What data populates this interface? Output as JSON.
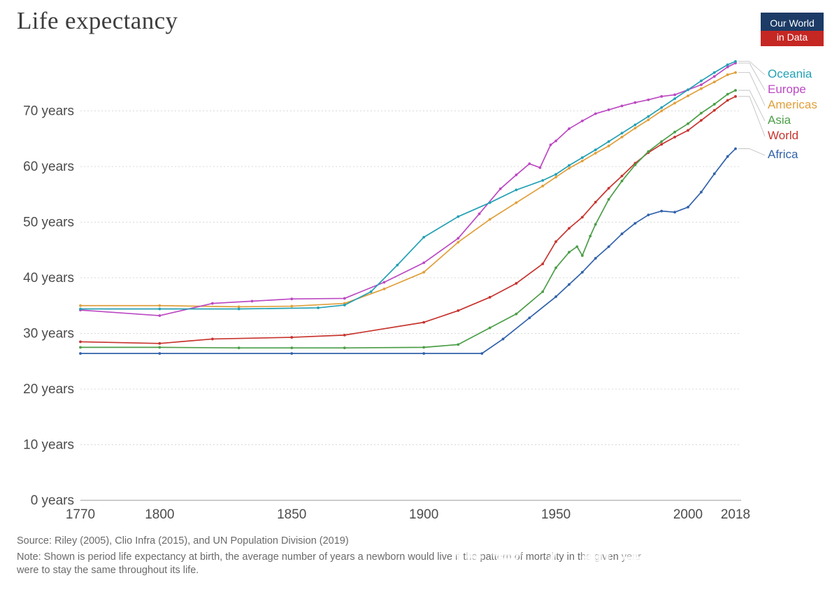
{
  "header": {
    "title": "Life expectancy",
    "logo_line1": "Our World",
    "logo_line2": "in Data"
  },
  "footer": {
    "source": "Source: Riley (2005), Clio Infra (2015), and UN Population Division (2019)",
    "note_line1": "Note: Shown is period life expectancy at birth, the average number of years a newborn would live if the pattern of mortality in the given year",
    "note_line2": "were to stay the same throughout its life.",
    "watermark": "传号 7 新亲玩美食"
  },
  "chart_data": {
    "type": "line",
    "title": "Life expectancy",
    "x_range": [
      1770,
      2018
    ],
    "y_range": [
      0,
      79
    ],
    "grid": true,
    "legend_position": "right",
    "x_ticks": [
      {
        "value": 1770,
        "label": "1770"
      },
      {
        "value": 1800,
        "label": "1800"
      },
      {
        "value": 1850,
        "label": "1850"
      },
      {
        "value": 1900,
        "label": "1900"
      },
      {
        "value": 1950,
        "label": "1950"
      },
      {
        "value": 2000,
        "label": "2000"
      },
      {
        "value": 2018,
        "label": "2018"
      }
    ],
    "y_ticks": [
      {
        "value": 0,
        "label": "0 years"
      },
      {
        "value": 10,
        "label": "10 years"
      },
      {
        "value": 20,
        "label": "20 years"
      },
      {
        "value": 30,
        "label": "30 years"
      },
      {
        "value": 40,
        "label": "40 years"
      },
      {
        "value": 50,
        "label": "50 years"
      },
      {
        "value": 60,
        "label": "60 years"
      },
      {
        "value": 70,
        "label": "70 years"
      }
    ],
    "series": [
      {
        "name": "Oceania",
        "color": "#23a0b4",
        "points": [
          [
            1770,
            34.4
          ],
          [
            1800,
            34.4
          ],
          [
            1830,
            34.4
          ],
          [
            1860,
            34.6
          ],
          [
            1870,
            35.1
          ],
          [
            1880,
            37.5
          ],
          [
            1890,
            42.3
          ],
          [
            1900,
            47.3
          ],
          [
            1913,
            51.0
          ],
          [
            1925,
            53.5
          ],
          [
            1935,
            55.8
          ],
          [
            1945,
            57.5
          ],
          [
            1950,
            58.6
          ],
          [
            1955,
            60.2
          ],
          [
            1960,
            61.6
          ],
          [
            1965,
            63.0
          ],
          [
            1970,
            64.5
          ],
          [
            1975,
            66.0
          ],
          [
            1980,
            67.5
          ],
          [
            1985,
            69.0
          ],
          [
            1990,
            70.6
          ],
          [
            1995,
            72.2
          ],
          [
            2000,
            73.8
          ],
          [
            2005,
            75.4
          ],
          [
            2010,
            76.9
          ],
          [
            2015,
            78.3
          ],
          [
            2018,
            78.9
          ]
        ]
      },
      {
        "name": "Europe",
        "color": "#bc49c3",
        "points": [
          [
            1770,
            34.2
          ],
          [
            1800,
            33.2
          ],
          [
            1820,
            35.4
          ],
          [
            1835,
            35.8
          ],
          [
            1850,
            36.2
          ],
          [
            1870,
            36.3
          ],
          [
            1885,
            39.2
          ],
          [
            1900,
            42.7
          ],
          [
            1913,
            47.1
          ],
          [
            1921,
            51.5
          ],
          [
            1929,
            56.0
          ],
          [
            1935,
            58.5
          ],
          [
            1940,
            60.5
          ],
          [
            1944,
            59.8
          ],
          [
            1948,
            63.9
          ],
          [
            1950,
            64.6
          ],
          [
            1955,
            66.8
          ],
          [
            1960,
            68.2
          ],
          [
            1965,
            69.5
          ],
          [
            1970,
            70.2
          ],
          [
            1975,
            70.9
          ],
          [
            1980,
            71.5
          ],
          [
            1985,
            72.0
          ],
          [
            1990,
            72.6
          ],
          [
            1995,
            72.9
          ],
          [
            2000,
            73.8
          ],
          [
            2005,
            74.7
          ],
          [
            2010,
            76.2
          ],
          [
            2015,
            77.9
          ],
          [
            2018,
            78.6
          ]
        ]
      },
      {
        "name": "Americas",
        "color": "#e09f3a",
        "points": [
          [
            1770,
            35.0
          ],
          [
            1800,
            35.0
          ],
          [
            1830,
            34.8
          ],
          [
            1850,
            34.9
          ],
          [
            1870,
            35.4
          ],
          [
            1885,
            38.0
          ],
          [
            1900,
            41.0
          ],
          [
            1913,
            46.4
          ],
          [
            1925,
            50.5
          ],
          [
            1935,
            53.5
          ],
          [
            1945,
            56.5
          ],
          [
            1950,
            58.1
          ],
          [
            1955,
            59.7
          ],
          [
            1960,
            61.0
          ],
          [
            1965,
            62.4
          ],
          [
            1970,
            63.7
          ],
          [
            1975,
            65.3
          ],
          [
            1980,
            66.9
          ],
          [
            1985,
            68.4
          ],
          [
            1990,
            70.0
          ],
          [
            1995,
            71.4
          ],
          [
            2000,
            72.7
          ],
          [
            2005,
            74.0
          ],
          [
            2010,
            75.2
          ],
          [
            2015,
            76.5
          ],
          [
            2018,
            76.9
          ]
        ]
      },
      {
        "name": "Asia",
        "color": "#4c9e47",
        "points": [
          [
            1770,
            27.5
          ],
          [
            1800,
            27.5
          ],
          [
            1830,
            27.4
          ],
          [
            1850,
            27.4
          ],
          [
            1870,
            27.4
          ],
          [
            1900,
            27.5
          ],
          [
            1913,
            28.0
          ],
          [
            1925,
            31.0
          ],
          [
            1935,
            33.5
          ],
          [
            1945,
            37.5
          ],
          [
            1950,
            41.8
          ],
          [
            1955,
            44.6
          ],
          [
            1958,
            45.6
          ],
          [
            1960,
            44.0
          ],
          [
            1963,
            47.5
          ],
          [
            1965,
            49.6
          ],
          [
            1970,
            54.1
          ],
          [
            1975,
            57.4
          ],
          [
            1980,
            60.3
          ],
          [
            1985,
            62.7
          ],
          [
            1990,
            64.5
          ],
          [
            1995,
            66.2
          ],
          [
            2000,
            67.7
          ],
          [
            2005,
            69.6
          ],
          [
            2010,
            71.2
          ],
          [
            2015,
            73.0
          ],
          [
            2018,
            73.7
          ]
        ]
      },
      {
        "name": "World",
        "color": "#c7342e",
        "points": [
          [
            1770,
            28.5
          ],
          [
            1800,
            28.2
          ],
          [
            1820,
            29.0
          ],
          [
            1850,
            29.3
          ],
          [
            1870,
            29.7
          ],
          [
            1900,
            32.0
          ],
          [
            1913,
            34.1
          ],
          [
            1925,
            36.5
          ],
          [
            1935,
            39.0
          ],
          [
            1945,
            42.5
          ],
          [
            1950,
            46.5
          ],
          [
            1955,
            48.9
          ],
          [
            1960,
            50.9
          ],
          [
            1965,
            53.6
          ],
          [
            1970,
            56.1
          ],
          [
            1975,
            58.3
          ],
          [
            1980,
            60.6
          ],
          [
            1985,
            62.5
          ],
          [
            1990,
            64.0
          ],
          [
            1995,
            65.3
          ],
          [
            2000,
            66.5
          ],
          [
            2005,
            68.3
          ],
          [
            2010,
            70.1
          ],
          [
            2015,
            71.9
          ],
          [
            2018,
            72.6
          ]
        ]
      },
      {
        "name": "Africa",
        "color": "#3262ab",
        "points": [
          [
            1770,
            26.4
          ],
          [
            1800,
            26.4
          ],
          [
            1850,
            26.4
          ],
          [
            1900,
            26.4
          ],
          [
            1922,
            26.4
          ],
          [
            1930,
            29.0
          ],
          [
            1940,
            32.8
          ],
          [
            1950,
            36.6
          ],
          [
            1955,
            38.8
          ],
          [
            1960,
            41.0
          ],
          [
            1965,
            43.5
          ],
          [
            1970,
            45.6
          ],
          [
            1975,
            47.9
          ],
          [
            1980,
            49.8
          ],
          [
            1985,
            51.3
          ],
          [
            1990,
            52.0
          ],
          [
            1995,
            51.8
          ],
          [
            2000,
            52.7
          ],
          [
            2005,
            55.4
          ],
          [
            2010,
            58.7
          ],
          [
            2015,
            61.8
          ],
          [
            2018,
            63.2
          ]
        ]
      }
    ]
  }
}
